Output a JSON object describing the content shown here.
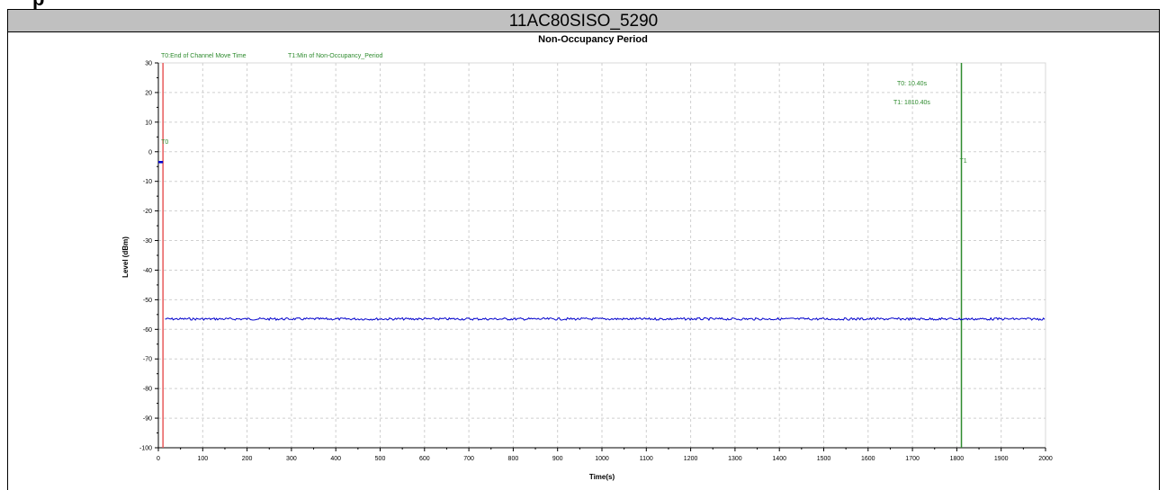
{
  "page": {
    "title": "11AC80SISO_5290"
  },
  "chart_data": {
    "type": "line",
    "title": "Non-Occupancy Period",
    "xlabel": "Time(s)",
    "ylabel": "Level (dBm)",
    "xlim": [
      0,
      2000
    ],
    "ylim": [
      -100,
      30
    ],
    "xticks": [
      0,
      100,
      200,
      300,
      400,
      500,
      600,
      700,
      800,
      900,
      1000,
      1100,
      1200,
      1300,
      1400,
      1500,
      1600,
      1700,
      1800,
      1900,
      2000
    ],
    "yticks": [
      30,
      20,
      10,
      0,
      -10,
      -20,
      -30,
      -40,
      -50,
      -60,
      -70,
      -80,
      -90,
      -100
    ],
    "grid": true,
    "legend": [
      "T0:End of Channel Move Time",
      "T1:Min of Non-Occupancy_Period"
    ],
    "markers": [
      {
        "name": "T0",
        "x": 10.4,
        "color": "#e8595b"
      },
      {
        "name": "T1",
        "x": 1810.4,
        "color": "#2e8b2e"
      }
    ],
    "annotations": [
      "T0: 10.40s",
      "T1: 1810.40s"
    ],
    "series": [
      {
        "x": [
          0,
          10.4
        ],
        "y": [
          -3.5,
          -3.5
        ],
        "color": "#0000cc"
      },
      {
        "x": [
          15,
          2000
        ],
        "y": [
          -56.5,
          -56.5
        ],
        "color": "#0000cc"
      }
    ]
  }
}
